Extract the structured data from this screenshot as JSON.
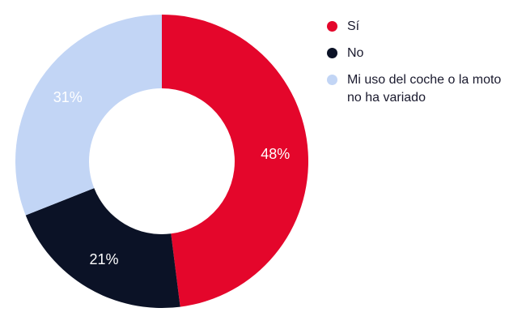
{
  "chart_data": {
    "type": "pie",
    "donut": true,
    "categories": [
      "Sí",
      "No",
      "Mi uso del coche o la moto no ha variado"
    ],
    "values": [
      48,
      21,
      31
    ],
    "value_labels": [
      "48%",
      "21%",
      "31%"
    ],
    "colors": [
      "#e4062b",
      "#0b1226",
      "#c2d5f5"
    ],
    "label_colors": [
      "#ffffff",
      "#ffffff",
      "#ffffff"
    ],
    "legend_position": "right"
  },
  "legend": {
    "items": [
      {
        "label": "Sí",
        "color": "#e4062b"
      },
      {
        "label": "No",
        "color": "#0b1226"
      },
      {
        "label": "Mi uso del coche o la moto no ha variado",
        "color": "#c2d5f5"
      }
    ]
  }
}
